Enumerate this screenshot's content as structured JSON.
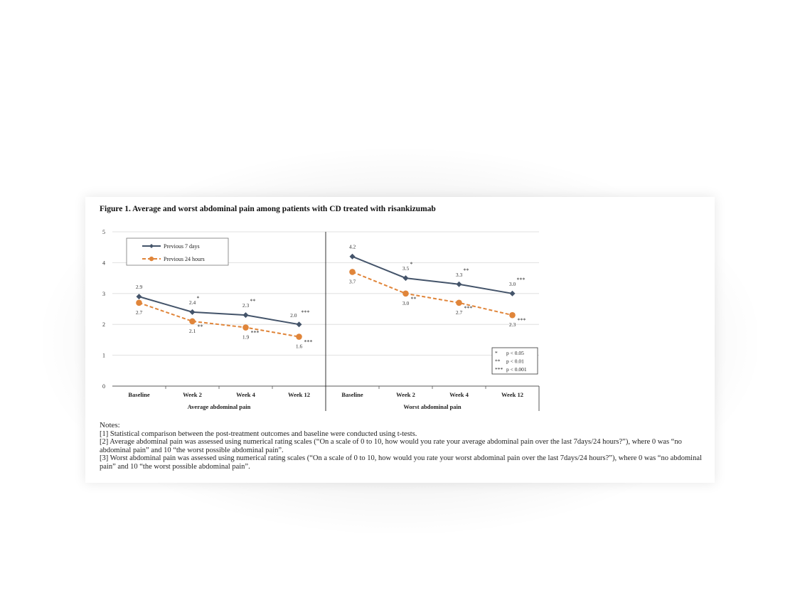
{
  "figure_title": "Figure 1. Average and worst abdominal pain among patients with CD treated with risankizumab",
  "colors": {
    "series_7d": "#44546a",
    "series_24h": "#e0853a",
    "grid": "#d9d9d9",
    "axis": "#595959"
  },
  "chart_data": {
    "type": "line",
    "ylim": [
      0,
      5
    ],
    "yticks": [
      "0",
      "1",
      "2",
      "3",
      "4",
      "5"
    ],
    "grid": true,
    "legend_placement": "top-left",
    "legend": [
      "Previous 7 days",
      "Previous 24 hours"
    ],
    "panels": [
      {
        "xlabel": "Average abdominal pain",
        "categories": [
          "Baseline",
          "Week 2",
          "Week 4",
          "Week 12"
        ],
        "series": [
          {
            "name": "Previous 7 days",
            "values": [
              2.9,
              2.4,
              2.3,
              2.0
            ],
            "labels": [
              "2.9",
              "2.4",
              "2.3",
              "2.0"
            ],
            "significance": [
              "",
              "*",
              "**",
              "***"
            ]
          },
          {
            "name": "Previous 24 hours",
            "values": [
              2.7,
              2.1,
              1.9,
              1.6
            ],
            "labels": [
              "2.7",
              "2.1",
              "1.9",
              "1.6"
            ],
            "significance": [
              "",
              "**",
              "***",
              "***"
            ]
          }
        ]
      },
      {
        "xlabel": "Worst abdominal pain",
        "categories": [
          "Baseline",
          "Week 2",
          "Week 4",
          "Week 12"
        ],
        "series": [
          {
            "name": "Previous 7 days",
            "values": [
              4.2,
              3.5,
              3.3,
              3.0
            ],
            "labels": [
              "4.2",
              "3.5",
              "3.3",
              "3.0"
            ],
            "significance": [
              "",
              "*",
              "**",
              "***"
            ]
          },
          {
            "name": "Previous 24 hours",
            "values": [
              3.7,
              3.0,
              2.7,
              2.3
            ],
            "labels": [
              "3.7",
              "3.0",
              "2.7",
              "2.3"
            ],
            "significance": [
              "",
              "**",
              "***",
              "***"
            ]
          }
        ]
      }
    ],
    "significance_key": [
      {
        "stars": "*",
        "text": "p < 0.05"
      },
      {
        "stars": "**",
        "text": "p < 0.01"
      },
      {
        "stars": "***",
        "text": "p < 0.001"
      }
    ]
  },
  "notes": {
    "title": "Notes:",
    "lines": [
      "[1] Statistical comparison between the post-treatment outcomes and baseline were conducted using t-tests.",
      "[2] Average abdominal pain was assessed using numerical rating scales (“On a scale of 0 to 10, how would you rate your average abdominal pain over the last 7days/24 hours?”), where 0 was “no abdominal pain” and 10 “the worst possible abdominal pain”.",
      "[3] Worst abdominal pain was assessed using numerical rating scales (“On a scale of 0 to 10, how would you rate your worst abdominal pain over the last 7days/24 hours?”), where 0 was “no abdominal pain” and 10 “the worst possible abdominal pain”."
    ]
  }
}
